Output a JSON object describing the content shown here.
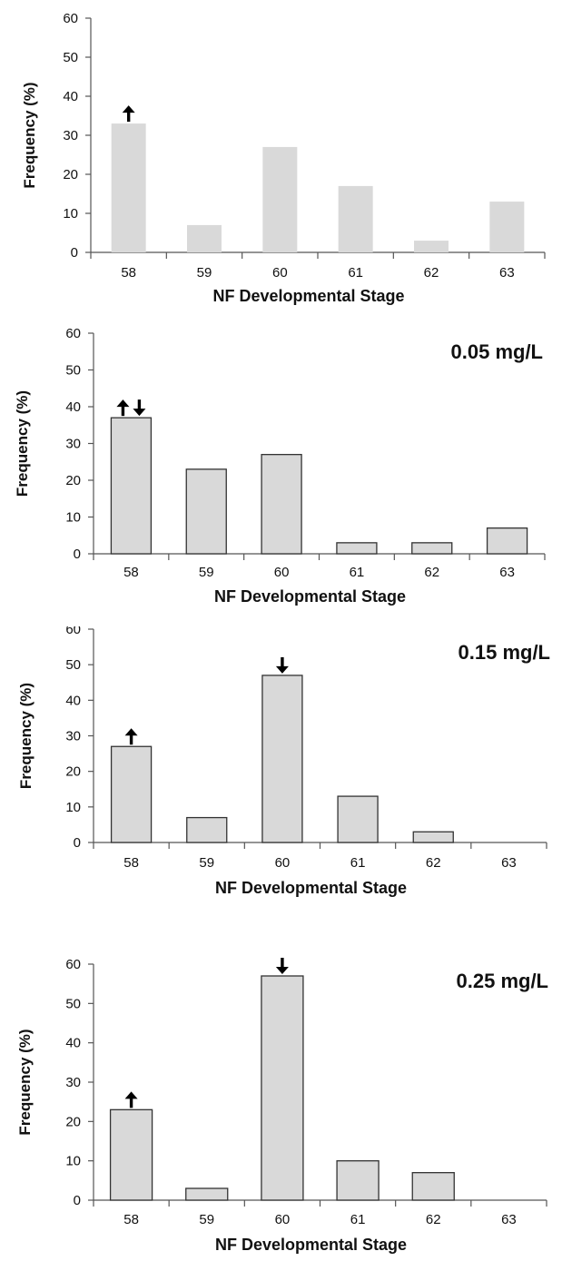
{
  "colors": {
    "bar_fill": "#d9d9d9",
    "bar_stroke": "#333333",
    "axis": "#555555",
    "arrow": "#000000",
    "text": "#111111"
  },
  "chart_data": [
    {
      "type": "bar",
      "annotation": "",
      "categories": [
        "58",
        "59",
        "60",
        "61",
        "62",
        "63"
      ],
      "values": [
        33,
        7,
        27,
        17,
        3,
        13
      ],
      "arrows": [
        {
          "category": "58",
          "direction": [
            "up"
          ]
        }
      ],
      "xlabel": "NF Developmental Stage",
      "ylabel": "Frequency (%)",
      "ylim": [
        0,
        60
      ],
      "yticks": [
        0,
        10,
        20,
        30,
        40,
        50,
        60
      ],
      "grid": false,
      "bar_outline": false
    },
    {
      "type": "bar",
      "annotation": "0.05 mg/L",
      "categories": [
        "58",
        "59",
        "60",
        "61",
        "62",
        "63"
      ],
      "values": [
        37,
        23,
        27,
        3,
        3,
        7
      ],
      "arrows": [
        {
          "category": "58",
          "direction": [
            "up",
            "down"
          ]
        }
      ],
      "xlabel": "NF Developmental Stage",
      "ylabel": "Frequency (%)",
      "ylim": [
        0,
        60
      ],
      "yticks": [
        0,
        10,
        20,
        30,
        40,
        50,
        60
      ],
      "grid": false,
      "bar_outline": true
    },
    {
      "type": "bar",
      "annotation": "0.15 mg/L",
      "categories": [
        "58",
        "59",
        "60",
        "61",
        "62",
        "63"
      ],
      "values": [
        27,
        7,
        47,
        13,
        3,
        0
      ],
      "arrows": [
        {
          "category": "58",
          "direction": [
            "up"
          ]
        },
        {
          "category": "60",
          "direction": [
            "down"
          ]
        }
      ],
      "xlabel": "NF Developmental Stage",
      "ylabel": "Frequency (%)",
      "ylim": [
        0,
        60
      ],
      "yticks": [
        0,
        10,
        20,
        30,
        40,
        50,
        60
      ],
      "grid": false,
      "bar_outline": true
    },
    {
      "type": "bar",
      "annotation": "0.25 mg/L",
      "categories": [
        "58",
        "59",
        "60",
        "61",
        "62",
        "63"
      ],
      "values": [
        23,
        3,
        57,
        10,
        7,
        0
      ],
      "arrows": [
        {
          "category": "58",
          "direction": [
            "up"
          ]
        },
        {
          "category": "60",
          "direction": [
            "down"
          ]
        }
      ],
      "xlabel": "NF Developmental Stage",
      "ylabel": "Frequency (%)",
      "ylim": [
        0,
        60
      ],
      "yticks": [
        0,
        10,
        20,
        30,
        40,
        50,
        60
      ],
      "grid": false,
      "bar_outline": true
    }
  ]
}
